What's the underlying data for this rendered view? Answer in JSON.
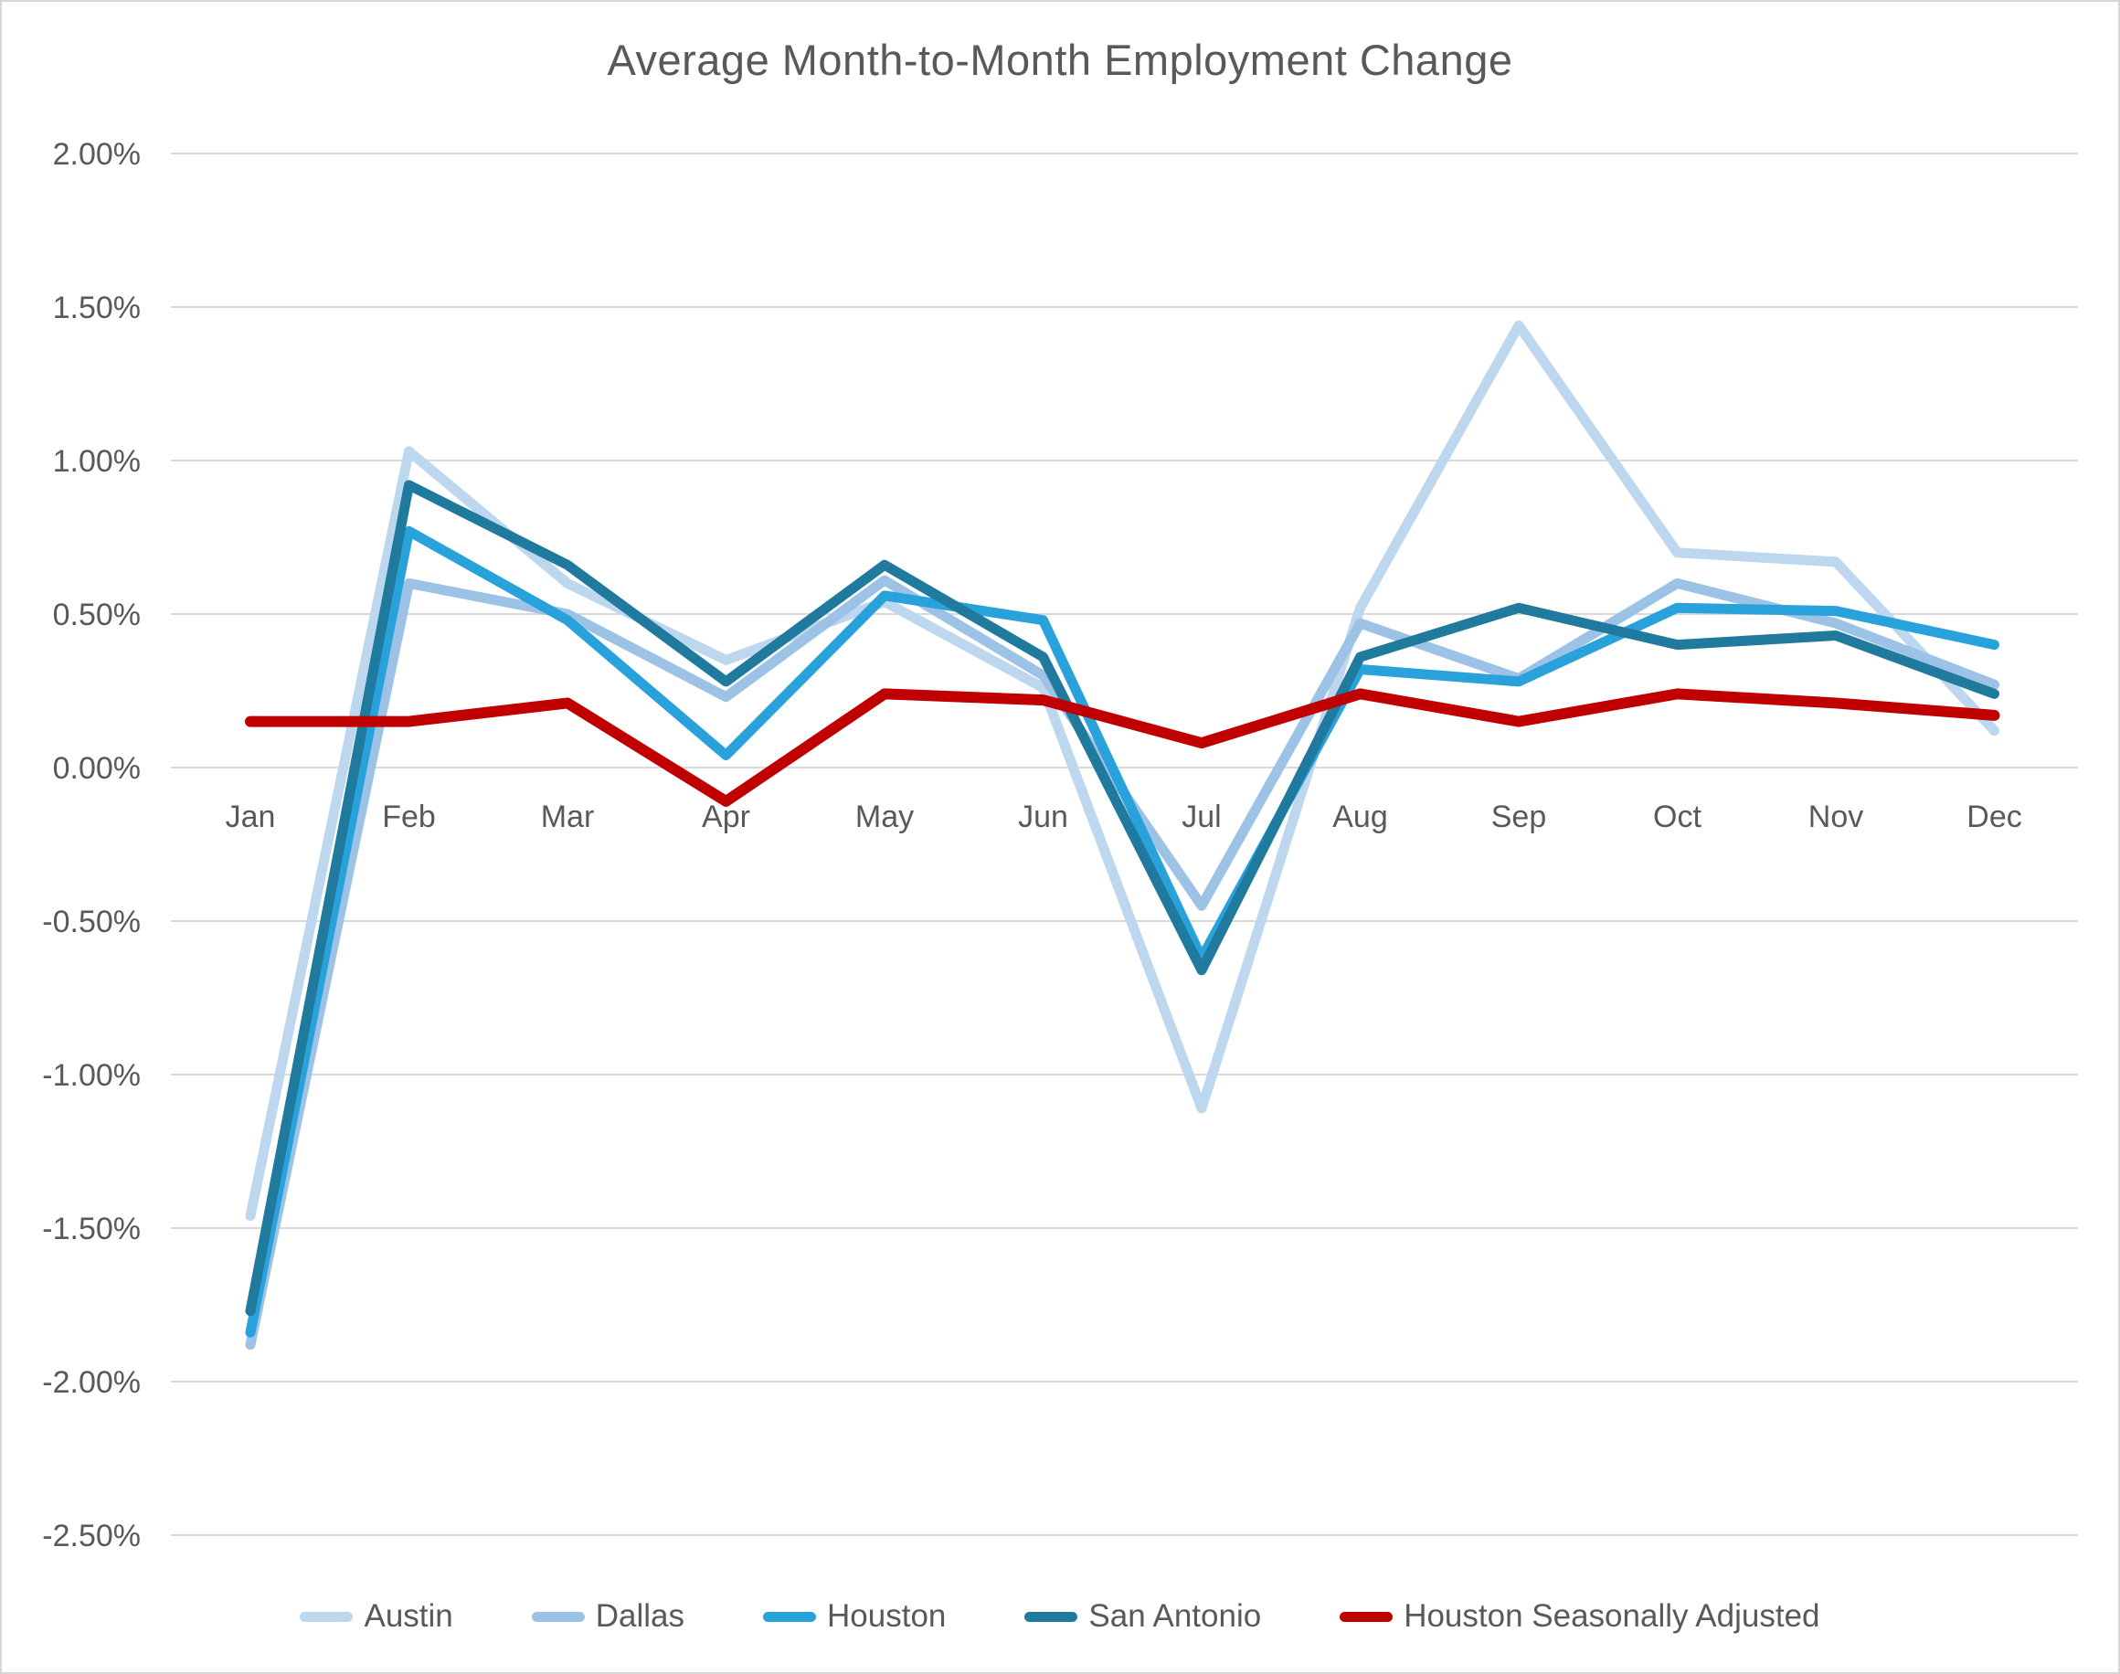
{
  "chart": {
    "title": "Average Month-to-Month Employment Change",
    "colors": {
      "gridline": "#d9d9d9",
      "axis_text": "#595959",
      "title_text": "#595959"
    },
    "chart_data": {
      "type": "line",
      "categories": [
        "Jan",
        "Feb",
        "Mar",
        "Apr",
        "May",
        "Jun",
        "Jul",
        "Aug",
        "Sep",
        "Oct",
        "Nov",
        "Dec"
      ],
      "y_axis": {
        "min": -2.5,
        "max": 2.0,
        "step": 0.5,
        "tick_labels": [
          "2.00%",
          "1.50%",
          "1.00%",
          "0.50%",
          "0.00%",
          "-0.50%",
          "-1.00%",
          "-1.50%",
          "-2.00%",
          "-2.50%"
        ]
      },
      "gridlines": true,
      "legend_position": "bottom",
      "series": [
        {
          "name": "Austin",
          "color": "#BDD7EE",
          "width": 11,
          "values": [
            -1.46,
            1.03,
            0.6,
            0.35,
            0.54,
            0.26,
            -1.11,
            0.52,
            1.44,
            0.7,
            0.67,
            0.12
          ]
        },
        {
          "name": "Dallas",
          "color": "#9CC3E5",
          "width": 11,
          "values": [
            -1.88,
            0.6,
            0.5,
            0.23,
            0.61,
            0.3,
            -0.45,
            0.47,
            0.29,
            0.6,
            0.47,
            0.27
          ]
        },
        {
          "name": "Houston",
          "color": "#29A1DB",
          "width": 11,
          "values": [
            -1.84,
            0.77,
            0.48,
            0.04,
            0.56,
            0.48,
            -0.62,
            0.32,
            0.28,
            0.52,
            0.51,
            0.4
          ]
        },
        {
          "name": "San Antonio",
          "color": "#1F7A9E",
          "width": 11,
          "values": [
            -1.77,
            0.92,
            0.66,
            0.28,
            0.66,
            0.36,
            -0.66,
            0.36,
            0.52,
            0.4,
            0.43,
            0.24
          ]
        },
        {
          "name": "Houston Seasonally Adjusted",
          "color": "#C00000",
          "width": 12,
          "values": [
            0.15,
            0.15,
            0.21,
            -0.11,
            0.24,
            0.22,
            0.08,
            0.24,
            0.15,
            0.24,
            0.21,
            0.17
          ]
        }
      ]
    }
  }
}
